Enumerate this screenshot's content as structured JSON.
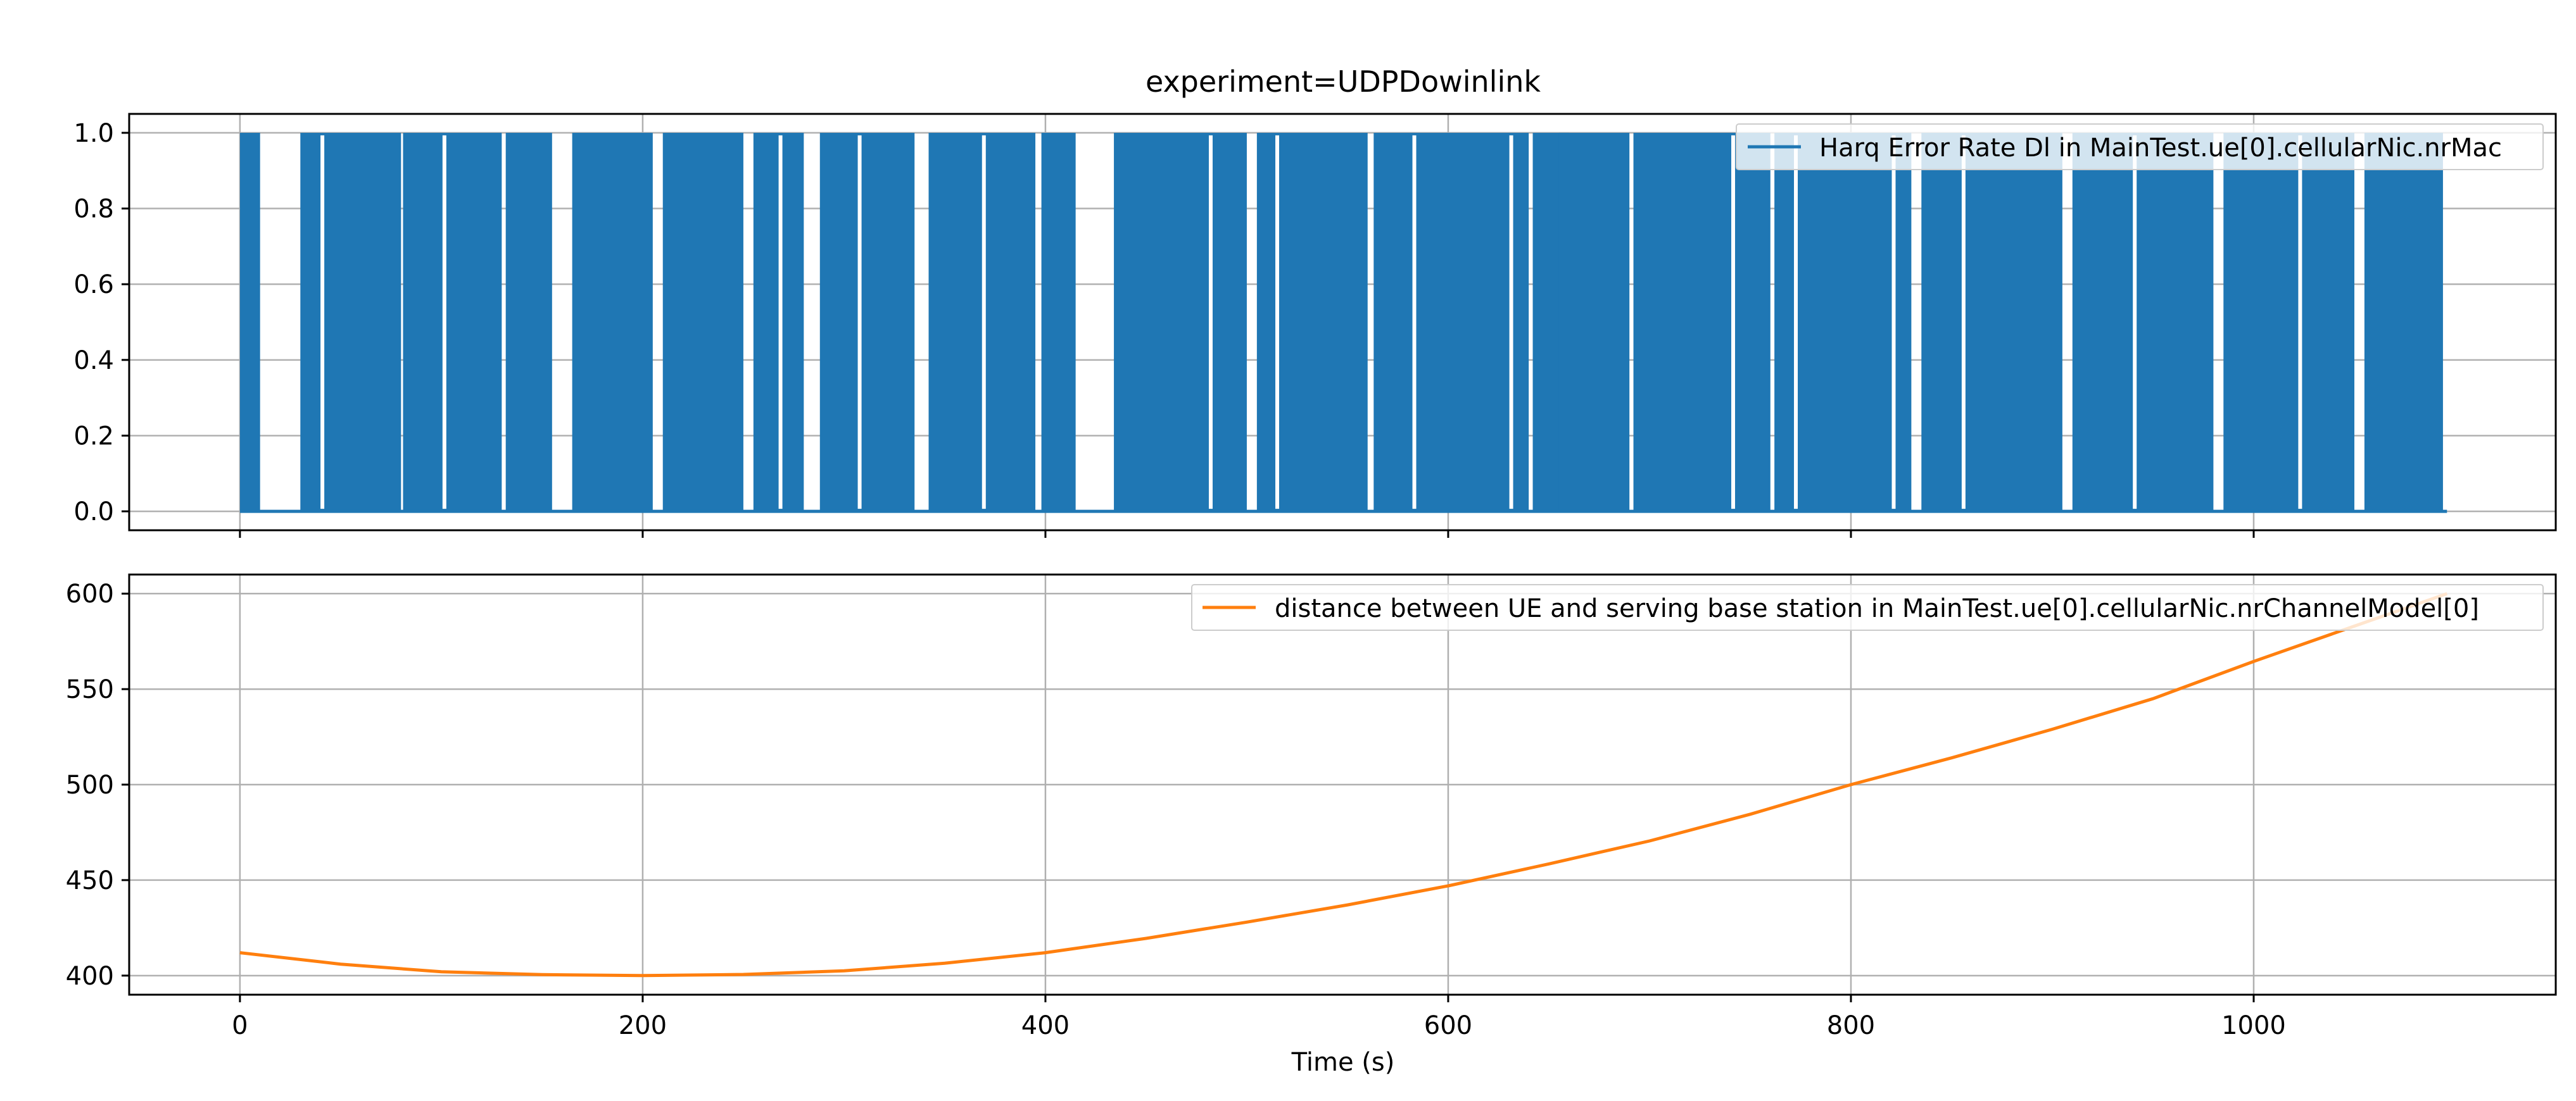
{
  "chart_data": [
    {
      "type": "line",
      "title": "experiment=UDPDowinlink",
      "xlabel": "",
      "ylabel": "",
      "xlim": [
        -55,
        1150
      ],
      "ylim": [
        -0.05,
        1.05
      ],
      "y_ticks": [
        0.0,
        0.2,
        0.4,
        0.6,
        0.8,
        1.0
      ],
      "y_tick_labels": [
        "0.0",
        "0.2",
        "0.4",
        "0.6",
        "0.8",
        "1.0"
      ],
      "x_ticks": [
        0,
        200,
        400,
        600,
        800,
        1000
      ],
      "grid": true,
      "legend_position": "top-right",
      "series": [
        {
          "name": "Harq Error Rate Dl in MainTest.ue[0].cellularNic.nrMac",
          "color": "#1f77b4",
          "values_binary": [
            0,
            1
          ],
          "x_range": [
            0,
            1096
          ],
          "error_spans": [
            [
              0,
              10
            ],
            [
              30,
              80
            ],
            [
              81,
              130
            ],
            [
              132,
              155
            ],
            [
              165,
              205
            ],
            [
              210,
              250
            ],
            [
              255,
              280
            ],
            [
              288,
              335
            ],
            [
              342,
              395
            ],
            [
              398,
              415
            ],
            [
              434,
              500
            ],
            [
              505,
              560
            ],
            [
              563,
              640
            ],
            [
              642,
              660
            ],
            [
              655,
              690
            ],
            [
              692,
              760
            ],
            [
              762,
              830
            ],
            [
              835,
              905
            ],
            [
              910,
              980
            ],
            [
              985,
              1050
            ],
            [
              1055,
              1094
            ]
          ]
        }
      ]
    },
    {
      "type": "line",
      "title": "",
      "xlabel": "Time (s)",
      "ylabel": "",
      "xlim": [
        -55,
        1150
      ],
      "ylim": [
        390,
        610
      ],
      "y_ticks": [
        400,
        450,
        500,
        550,
        600
      ],
      "x_ticks": [
        0,
        200,
        400,
        600,
        800,
        1000
      ],
      "x_tick_labels": [
        "0",
        "200",
        "400",
        "600",
        "800",
        "1000"
      ],
      "grid": true,
      "legend_position": "top-right",
      "series": [
        {
          "name": "distance between UE and serving base station in MainTest.ue[0].cellularNic.nrChannelModel[0]",
          "color": "#ff7f0e",
          "x": [
            0,
            50,
            100,
            150,
            200,
            250,
            300,
            350,
            400,
            450,
            500,
            550,
            600,
            650,
            700,
            750,
            800,
            850,
            900,
            950,
            1000,
            1050,
            1096
          ],
          "y": [
            412,
            406,
            402,
            400.5,
            400,
            400.6,
            402.5,
            406.5,
            412,
            419.5,
            428,
            437,
            447,
            458.5,
            470.5,
            484.5,
            500,
            514,
            529,
            545,
            564.5,
            583,
            600
          ]
        }
      ]
    }
  ]
}
